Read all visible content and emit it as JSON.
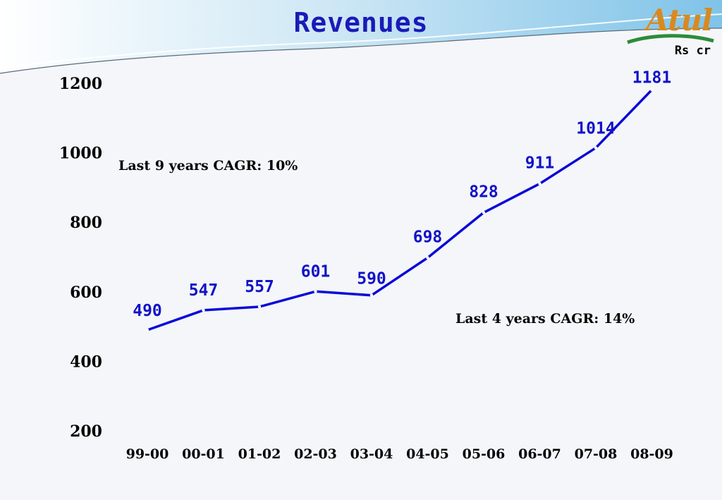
{
  "header": {
    "title": "Revenues",
    "unit": "Rs cr",
    "logo_text": "Atul"
  },
  "annotations": {
    "cagr_9yr": "Last 9 years CAGR: 10%",
    "cagr_4yr": "Last 4 years CAGR: 14%"
  },
  "colors": {
    "line": "#0a0ad8",
    "data_label": "#1212c8",
    "title": "#1a1ab8",
    "logo_orange": "#d9891e",
    "logo_green": "#2e8b3a"
  },
  "chart_data": {
    "type": "line",
    "categories": [
      "99-00",
      "00-01",
      "01-02",
      "02-03",
      "03-04",
      "04-05",
      "05-06",
      "06-07",
      "07-08",
      "08-09"
    ],
    "series": [
      {
        "values": [
          490,
          547,
          557,
          601,
          590,
          698,
          828,
          911,
          1014,
          1181
        ]
      }
    ],
    "yticks": [
      200,
      400,
      600,
      800,
      1000,
      1200
    ],
    "ylim": [
      200,
      1200
    ],
    "grid": false
  }
}
